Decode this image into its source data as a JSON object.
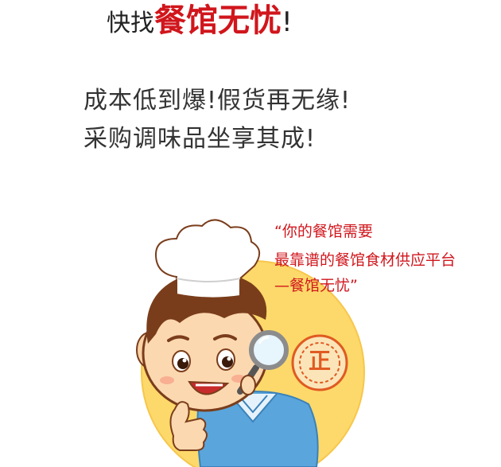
{
  "header": {
    "prefix": "快找",
    "brand": "餐馆无忧",
    "bang": "!"
  },
  "slogan": {
    "line1": "成本低到爆!假货再无缘!",
    "line2": "采购调味品坐享其成!"
  },
  "quote": {
    "line1": "“你的餐馆需要",
    "line2": "最靠谱的餐馆食材供应平台",
    "line3": "—餐馆无忧”"
  },
  "badge": {
    "text": "正"
  },
  "colors": {
    "brand_red": "#d0161c",
    "circle_yellow": "#fcd96a",
    "shirt_blue": "#5aa5dc"
  },
  "icons": {
    "character": "chef-boy-icon",
    "magnifier": "magnifier-icon",
    "stamp": "genuine-stamp-icon"
  }
}
